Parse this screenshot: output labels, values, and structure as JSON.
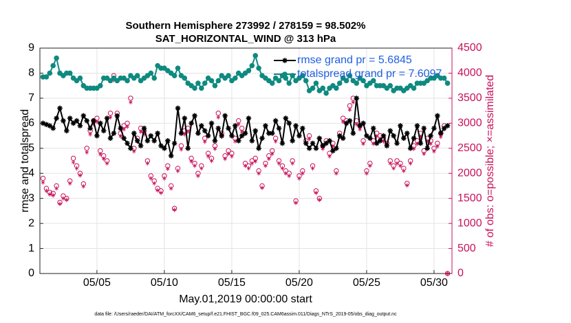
{
  "chart_data": {
    "type": "line",
    "title": "Southern Hemisphere 273992 / 278159 = 98.502%",
    "subtitle": "SAT_HORIZONTAL_WIND @ 313 hPa",
    "xlabel": "May.01,2019 00:00:00 start",
    "ylabel": "rmse and totalspread",
    "y2label": "# of obs: o=possible; ×=assimilated",
    "footnote": "data file: /Users/raeder/DAI/ATM_forcXX/CAM6_setup/f.e21.FHIST_BGC.f09_025.CAM6assim.011/Diags_NTrS_2019-05/obs_diag_output.nc",
    "grid": true,
    "legend": "upper right",
    "xlim": [
      0.77,
      31.33
    ],
    "xticks": [
      {
        "value": 5,
        "label": "05/05"
      },
      {
        "value": 10,
        "label": "05/10"
      },
      {
        "value": 15,
        "label": "05/15"
      },
      {
        "value": 20,
        "label": "05/20"
      },
      {
        "value": 25,
        "label": "05/25"
      },
      {
        "value": 30,
        "label": "05/30"
      }
    ],
    "ylim": [
      0,
      9
    ],
    "yticks": [
      0,
      1,
      2,
      3,
      4,
      5,
      6,
      7,
      8,
      9
    ],
    "y2lim": [
      0,
      4500
    ],
    "y2ticks": [
      0,
      500,
      1000,
      1500,
      2000,
      2500,
      3000,
      3500,
      4000,
      4500
    ],
    "y2color": "#c8105a",
    "x": [
      1,
      1.25,
      1.5,
      1.75,
      2,
      2.25,
      2.5,
      2.75,
      3,
      3.25,
      3.5,
      3.75,
      4,
      4.25,
      4.5,
      4.75,
      5,
      5.25,
      5.5,
      5.75,
      6,
      6.25,
      6.5,
      6.75,
      7,
      7.25,
      7.5,
      7.75,
      8,
      8.25,
      8.5,
      8.75,
      9,
      9.25,
      9.5,
      9.75,
      10,
      10.25,
      10.5,
      10.75,
      11,
      11.25,
      11.5,
      11.75,
      12,
      12.25,
      12.5,
      12.75,
      13,
      13.25,
      13.5,
      13.75,
      14,
      14.25,
      14.5,
      14.75,
      15,
      15.25,
      15.5,
      15.75,
      16,
      16.25,
      16.5,
      16.75,
      17,
      17.25,
      17.5,
      17.75,
      18,
      18.25,
      18.5,
      18.75,
      19,
      19.25,
      19.5,
      19.75,
      20,
      20.25,
      20.5,
      20.75,
      21,
      21.25,
      21.5,
      21.75,
      22,
      22.25,
      22.5,
      22.75,
      23,
      23.25,
      23.5,
      23.75,
      24,
      24.25,
      24.5,
      24.75,
      25,
      25.25,
      25.5,
      25.75,
      26,
      26.25,
      26.5,
      26.75,
      27,
      27.25,
      27.5,
      27.75,
      28,
      28.25,
      28.5,
      28.75,
      29,
      29.25,
      29.5,
      29.75,
      30,
      30.25,
      30.5,
      30.75,
      31
    ],
    "series": [
      {
        "name": "rmse grand pr = 5.6845",
        "color": "#000000",
        "marker": "star",
        "values": [
          6.0,
          5.95,
          5.9,
          5.8,
          6.2,
          6.6,
          6.1,
          5.7,
          6.2,
          6.0,
          6.1,
          5.9,
          6.3,
          6.1,
          5.8,
          6.1,
          5.5,
          6.0,
          5.7,
          6.2,
          5.4,
          5.6,
          6.3,
          5.8,
          5.4,
          5.2,
          5.0,
          5.6,
          5.3,
          5.1,
          5.8,
          5.3,
          5.5,
          5.3,
          5.6,
          5.1,
          5.0,
          5.3,
          4.7,
          5.2,
          6.6,
          5.6,
          6.2,
          5.0,
          6.0,
          6.3,
          5.6,
          5.9,
          5.7,
          5.5,
          6.0,
          5.3,
          5.8,
          5.5,
          6.3,
          5.8,
          5.5,
          5.9,
          5.3,
          5.5,
          5.6,
          6.2,
          5.3,
          5.7,
          5.0,
          5.4,
          5.9,
          5.6,
          5.6,
          6.1,
          5.8,
          5.2,
          6.2,
          6.0,
          5.3,
          5.9,
          5.5,
          5.8,
          5.2,
          5.0,
          5.2,
          5.0,
          5.4,
          5.1,
          5.2,
          5.3,
          4.9,
          5.0,
          5.5,
          5.4,
          6.0,
          6.1,
          5.6,
          7.0,
          5.9,
          6.0,
          5.5,
          5.4,
          5.8,
          5.2,
          5.3,
          5.5,
          5.1,
          5.7,
          5.5,
          5.2,
          5.9,
          5.4,
          5.6,
          5.0,
          5.4,
          5.9,
          5.2,
          5.8,
          5.0,
          5.5,
          5.8,
          6.3,
          5.6,
          5.8,
          5.9
        ]
      },
      {
        "name": "totalspread grand pr = 7.6097",
        "color": "#0e8a80",
        "marker": "circle",
        "values": [
          7.85,
          7.85,
          8.0,
          8.3,
          8.6,
          8.0,
          7.9,
          8.0,
          8.0,
          7.8,
          7.7,
          7.8,
          7.5,
          7.4,
          7.4,
          7.4,
          7.4,
          7.5,
          7.8,
          7.8,
          7.7,
          7.8,
          7.7,
          7.8,
          7.8,
          7.7,
          7.9,
          7.8,
          7.9,
          7.7,
          7.8,
          7.9,
          8.0,
          7.8,
          8.3,
          8.2,
          8.2,
          8.1,
          8.0,
          7.9,
          8.2,
          7.9,
          7.8,
          7.6,
          7.5,
          7.4,
          7.6,
          7.4,
          7.6,
          7.8,
          7.7,
          7.5,
          7.7,
          7.9,
          7.8,
          7.9,
          7.7,
          7.8,
          8.0,
          7.9,
          8.0,
          8.1,
          8.3,
          8.7,
          8.2,
          7.9,
          7.8,
          7.7,
          7.6,
          7.8,
          7.7,
          7.9,
          7.8,
          7.6,
          7.9,
          7.7,
          7.8,
          7.9,
          7.7,
          7.3,
          7.4,
          7.6,
          7.3,
          7.4,
          7.2,
          7.4,
          7.5,
          7.4,
          7.6,
          7.8,
          7.7,
          7.9,
          7.7,
          7.6,
          7.8,
          7.7,
          7.5,
          7.6,
          7.7,
          7.5,
          7.5,
          7.5,
          7.4,
          7.5,
          7.3,
          7.4,
          7.4,
          7.3,
          7.4,
          7.5,
          7.4,
          7.6,
          7.6,
          7.6,
          7.7,
          7.8,
          7.8,
          7.9,
          7.8,
          7.8,
          7.6
        ]
      },
      {
        "color": "#c8105a",
        "marker": "open-circle",
        "axis": "y2",
        "values": [
          1900,
          1700,
          1620,
          1600,
          1750,
          1420,
          1550,
          1500,
          1850,
          2300,
          2150,
          2000,
          1790,
          2500,
          2850,
          3050,
          3100,
          2450,
          2350,
          2250,
          3200,
          3950,
          3200,
          2800,
          2950,
          3000,
          3500,
          2500,
          2700,
          2900,
          2850,
          2250,
          1950,
          1850,
          1700,
          1650,
          1950,
          2150,
          1750,
          1300,
          2100,
          2550,
          2850,
          2900,
          2300,
          2200,
          2000,
          2150,
          2700,
          2400,
          2300,
          2550,
          3200,
          2800,
          2350,
          2450,
          2400,
          2700,
          3050,
          2900,
          2200,
          2150,
          2250,
          2300,
          2050,
          1750,
          2200,
          2350,
          2450,
          2700,
          2250,
          2150,
          2050,
          2000,
          2250,
          1450,
          1950,
          2050,
          2650,
          2750,
          2150,
          1650,
          1500,
          2550,
          2650,
          2400,
          2600,
          2050,
          2800,
          3100,
          3050,
          3350,
          3500,
          3050,
          2950,
          2650,
          2050,
          2200,
          2650,
          2800,
          2750,
          2700,
          2600,
          2250,
          2150,
          2250,
          2200,
          2100,
          1800,
          2250,
          2550,
          2650,
          2800,
          2450,
          2700,
          2650,
          2500,
          2600,
          2800,
          2950,
          0
        ]
      },
      {
        "color": "#c8105a",
        "marker": "asterisk",
        "axis": "y2",
        "values": [
          1820,
          1650,
          1580,
          1560,
          1700,
          1390,
          1500,
          1470,
          1800,
          2220,
          2100,
          1960,
          1740,
          2420,
          2780,
          2980,
          3030,
          2380,
          2290,
          2200,
          3120,
          3860,
          3130,
          2740,
          2880,
          2930,
          3420,
          2440,
          2630,
          2830,
          2780,
          2200,
          1900,
          1800,
          1660,
          1610,
          1900,
          2090,
          1700,
          1270,
          2050,
          2480,
          2780,
          2830,
          2240,
          2150,
          1950,
          2100,
          2630,
          2340,
          2250,
          2490,
          3120,
          2730,
          2290,
          2390,
          2340,
          2640,
          2980,
          2830,
          2150,
          2100,
          2200,
          2240,
          2000,
          1710,
          2150,
          2290,
          2390,
          2640,
          2200,
          2100,
          2000,
          1950,
          2200,
          1410,
          1900,
          2000,
          2590,
          2690,
          2100,
          1610,
          1470,
          2490,
          2590,
          2340,
          2540,
          2000,
          2730,
          3030,
          2980,
          3270,
          3420,
          2980,
          2880,
          2590,
          2000,
          2150,
          2590,
          2740,
          2690,
          2640,
          2540,
          2200,
          2100,
          2200,
          2150,
          2050,
          1760,
          2200,
          2490,
          2590,
          2730,
          2390,
          2640,
          2590,
          2440,
          2540,
          2730,
          2880,
          0
        ]
      }
    ]
  }
}
